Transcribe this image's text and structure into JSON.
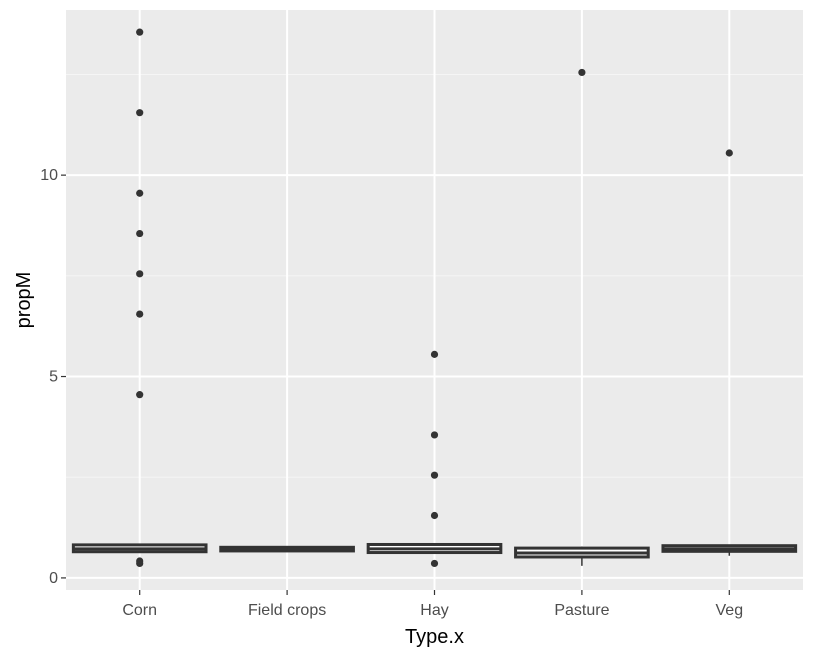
{
  "chart_data": {
    "type": "boxplot",
    "xlabel": "Type.x",
    "ylabel": "propM",
    "ylim": [
      -0.3,
      14.1
    ],
    "y_ticks": [
      0,
      5,
      10
    ],
    "grid": true,
    "colors": {
      "panel_background": "#ebebeb",
      "grid_major": "#ffffff",
      "grid_minor": "#f5f5f5",
      "box_outline": "#333333",
      "box_fill": "#ffffff",
      "point": "#333333"
    },
    "categories": [
      "Corn",
      "Field crops",
      "Hay",
      "Pasture",
      "Veg"
    ],
    "boxes": [
      {
        "category": "Corn",
        "lower_whisker": 0.62,
        "q1": 0.65,
        "median": 0.72,
        "q3": 0.82,
        "upper_whisker": 0.85,
        "outliers": [
          13.55,
          11.55,
          9.55,
          8.55,
          7.55,
          6.55,
          4.55,
          0.42,
          0.36
        ]
      },
      {
        "category": "Field crops",
        "lower_whisker": 0.65,
        "q1": 0.67,
        "median": 0.72,
        "q3": 0.76,
        "upper_whisker": 0.78,
        "outliers": []
      },
      {
        "category": "Hay",
        "lower_whisker": 0.62,
        "q1": 0.63,
        "median": 0.72,
        "q3": 0.83,
        "upper_whisker": 0.85,
        "outliers": [
          5.55,
          3.55,
          2.55,
          1.55,
          0.36
        ]
      },
      {
        "category": "Pasture",
        "lower_whisker": 0.3,
        "q1": 0.52,
        "median": 0.62,
        "q3": 0.74,
        "upper_whisker": 0.78,
        "outliers": [
          12.55
        ]
      },
      {
        "category": "Veg",
        "lower_whisker": 0.55,
        "q1": 0.66,
        "median": 0.72,
        "q3": 0.8,
        "upper_whisker": 0.82,
        "outliers": [
          10.55
        ]
      }
    ]
  }
}
